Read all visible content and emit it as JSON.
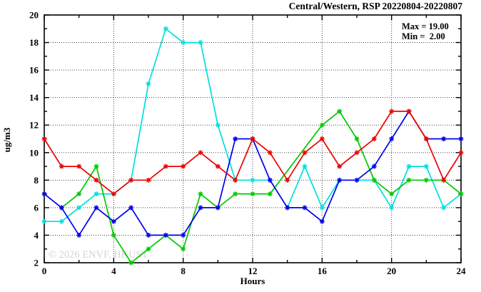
{
  "title": "Central/Western, RSP 20220804-20220807",
  "annotation": {
    "max_label": "Max = 19.00",
    "min_label": "Min =  2.00"
  },
  "watermark": "© 2026 ENVF, HKUST",
  "chart_data": {
    "type": "line",
    "title": "Central/Western, RSP 20220804-20220807",
    "xlabel": "Hours",
    "ylabel": "ug/m3",
    "xlim": [
      0,
      24
    ],
    "ylim": [
      2,
      20
    ],
    "grid": true,
    "legend_position": "none",
    "x_major_ticks": [
      0,
      4,
      8,
      12,
      16,
      20,
      24
    ],
    "x_minor_ticks": [
      2,
      6,
      10,
      14,
      18,
      22
    ],
    "y_major_ticks": [
      2,
      4,
      6,
      8,
      10,
      12,
      14,
      16,
      18,
      20
    ],
    "y_minor_ticks": [
      3,
      5,
      7,
      9,
      11,
      13,
      15,
      17,
      19
    ],
    "grid_x": [
      4,
      8,
      12,
      16,
      20
    ],
    "grid_y": [
      4,
      6,
      8,
      10,
      12,
      14,
      16,
      18
    ],
    "x": [
      0,
      1,
      2,
      3,
      4,
      5,
      6,
      7,
      8,
      9,
      10,
      11,
      12,
      13,
      14,
      15,
      16,
      17,
      18,
      19,
      20,
      21,
      22,
      23,
      24
    ],
    "series": [
      {
        "name": "cyan-line",
        "color": "#00dfdf",
        "values": [
          5,
          5,
          6,
          7,
          7,
          8,
          15,
          19,
          18,
          18,
          12,
          8,
          8,
          8,
          6,
          9,
          6,
          8,
          8,
          8,
          6,
          9,
          9,
          6,
          7
        ]
      },
      {
        "name": "green-line",
        "color": "#00c800",
        "values": [
          null,
          6,
          7,
          9,
          4,
          2,
          3,
          4,
          3,
          7,
          6,
          7,
          7,
          7,
          null,
          null,
          12,
          13,
          11,
          8,
          7,
          8,
          8,
          8,
          7
        ]
      },
      {
        "name": "blue-line",
        "color": "#0000ee",
        "values": [
          7,
          6,
          4,
          6,
          5,
          6,
          4,
          4,
          4,
          6,
          6,
          11,
          11,
          8,
          6,
          6,
          5,
          8,
          8,
          9,
          11,
          13,
          11,
          11,
          11
        ]
      },
      {
        "name": "red-line",
        "color": "#ee0000",
        "values": [
          11,
          9,
          9,
          8,
          7,
          8,
          8,
          9,
          9,
          10,
          9,
          8,
          11,
          10,
          8,
          10,
          11,
          9,
          10,
          11,
          13,
          13,
          11,
          8,
          10
        ]
      }
    ],
    "stats": {
      "max": 19.0,
      "min": 2.0
    }
  }
}
